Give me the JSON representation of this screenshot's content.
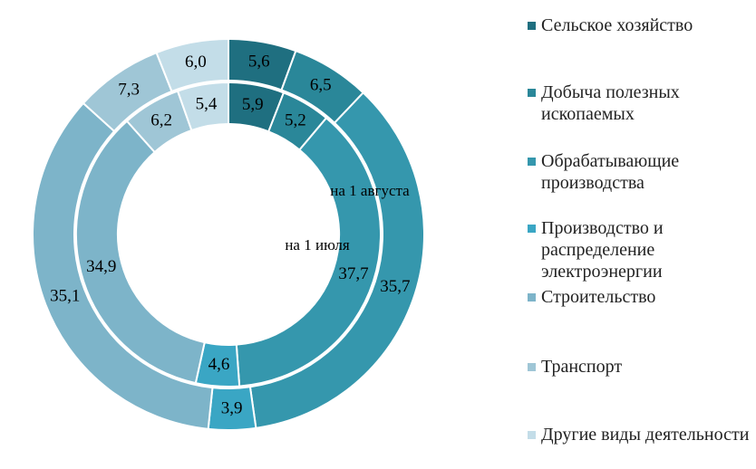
{
  "chart_data": {
    "type": "donut",
    "categories": [
      "Сельское хозяйство",
      "Добыча полезных ископаемых",
      "Обрабатывающие производства",
      "Производство и распределение электроэнергии",
      "Строительство",
      "Транспорт",
      "Другие виды деятельности"
    ],
    "colors": [
      "#1f6f80",
      "#2a8799",
      "#3597ad",
      "#3aa6c4",
      "#7db4c9",
      "#9fc6d6",
      "#c3dde8"
    ],
    "series": [
      {
        "name": "на 1 августа",
        "values": [
          5.6,
          6.5,
          35.7,
          3.9,
          35.1,
          7.3,
          6.0
        ],
        "value_labels": [
          "5,6",
          "6,5",
          "35,7",
          "3,9",
          "35,1",
          "7,3",
          "6,0"
        ]
      },
      {
        "name": "на 1 июля",
        "values": [
          5.9,
          5.2,
          37.7,
          4.6,
          34.9,
          6.2,
          5.4
        ],
        "value_labels": [
          "5,9",
          "5,2",
          "37,7",
          "4,6",
          "34,9",
          "6,2",
          "5,4"
        ]
      }
    ]
  }
}
